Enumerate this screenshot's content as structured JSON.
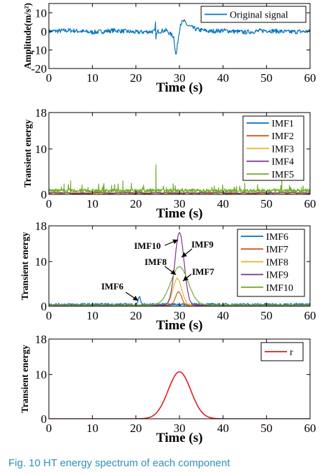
{
  "caption": "Fig. 10   HT energy spectrum of each component",
  "colors": {
    "blue": "#0072BD",
    "orange": "#D95319",
    "yellow": "#EDB120",
    "purple": "#7E2F8E",
    "green": "#77AC30",
    "red": "#E31A1C",
    "caption": "#2f8fb8"
  },
  "chart_data": [
    {
      "type": "line",
      "xlabel": "Time (s)",
      "ylabel": "Amplitude(m/s²)",
      "xlim": [
        0,
        60
      ],
      "ylim": [
        -20,
        15
      ],
      "xticks": [
        0,
        10,
        20,
        30,
        40,
        50,
        60
      ],
      "yticks": [
        -20,
        -10,
        0,
        10
      ],
      "legend_position": "top-right",
      "series": [
        {
          "name": "Original signal",
          "color": "#0072BD",
          "x": [
            0,
            5,
            10,
            15,
            20,
            24.4,
            24.5,
            24.6,
            25,
            27,
            28.7,
            29.2,
            29.6,
            30.2,
            31,
            32,
            34,
            37,
            40,
            45,
            50,
            55,
            60
          ],
          "y": [
            0,
            0.5,
            -0.5,
            0.5,
            -0.5,
            0,
            5,
            -3,
            0,
            0.5,
            -3,
            -13.5,
            -6,
            4,
            5.5,
            3,
            1,
            0,
            0.5,
            -0.5,
            0.5,
            -0.3,
            0
          ]
        }
      ]
    },
    {
      "type": "line",
      "xlabel": "Time (s)",
      "ylabel": "Transient energy",
      "xlim": [
        0,
        60
      ],
      "ylim": [
        0,
        18
      ],
      "xticks": [
        0,
        10,
        20,
        30,
        40,
        50,
        60
      ],
      "yticks": [
        0,
        10,
        18
      ],
      "legend_position": "top-right",
      "series": [
        {
          "name": "IMF1",
          "color": "#0072BD",
          "x": [
            0,
            60
          ],
          "y": [
            0.3,
            0.3
          ]
        },
        {
          "name": "IMF2",
          "color": "#D95319",
          "x": [
            0,
            60
          ],
          "y": [
            0.3,
            0.3
          ]
        },
        {
          "name": "IMF3",
          "color": "#EDB120",
          "x": [
            0,
            60
          ],
          "y": [
            0.3,
            0.3
          ]
        },
        {
          "name": "IMF4",
          "color": "#7E2F8E",
          "x": [
            0,
            60
          ],
          "y": [
            0.3,
            0.3
          ]
        },
        {
          "name": "IMF5",
          "color": "#77AC30",
          "x": [
            0,
            3.5,
            5,
            9,
            12.5,
            17,
            20,
            24.6,
            27,
            33,
            39,
            45,
            49,
            53.5,
            55.7,
            58,
            60
          ],
          "y": [
            0.5,
            2.3,
            3.0,
            1.5,
            2.0,
            3.0,
            1.0,
            6.5,
            1.5,
            1.2,
            1.5,
            2.5,
            1.3,
            3.5,
            1.2,
            1.5,
            0.5
          ]
        }
      ]
    },
    {
      "type": "line",
      "xlabel": "Time (s)",
      "ylabel": "Transient energy",
      "xlim": [
        0,
        60
      ],
      "ylim": [
        0,
        18
      ],
      "xticks": [
        0,
        10,
        20,
        30,
        40,
        50,
        60
      ],
      "yticks": [
        0,
        10,
        18
      ],
      "legend_position": "top-right",
      "annotations": [
        {
          "text": "IMF10",
          "x": 27.1,
          "y": 15.6
        },
        {
          "text": "IMF9",
          "x": 30.2,
          "y": 16
        },
        {
          "text": "IMF8",
          "x": 28.6,
          "y": 8.8
        },
        {
          "text": "IMF7",
          "x": 30.2,
          "y": 7.6
        },
        {
          "text": "IMF6",
          "x": 20.5,
          "y": 1.3
        }
      ],
      "series": [
        {
          "name": "IMF6",
          "color": "#0072BD",
          "peak_x": 20.8,
          "peak_y": 1.6,
          "width": 0.3
        },
        {
          "name": "IMF7",
          "color": "#D95319",
          "peak_x": 29.8,
          "peak_y": 3.0,
          "width": 0.7
        },
        {
          "name": "IMF8",
          "color": "#EDB120",
          "peak_x": 29.5,
          "peak_y": 6.0,
          "width": 1.0
        },
        {
          "name": "IMF9",
          "color": "#7E2F8E",
          "peak_x": 30.0,
          "peak_y": 16.3,
          "width": 1.05
        },
        {
          "name": "IMF10",
          "color": "#77AC30",
          "peak_x": 30.0,
          "peak_y": 8.6,
          "width": 2.0
        }
      ]
    },
    {
      "type": "line",
      "xlabel": "Time (s)",
      "ylabel": "Transient energy",
      "xlim": [
        0,
        60
      ],
      "ylim": [
        0,
        18
      ],
      "xticks": [
        0,
        10,
        20,
        30,
        40,
        50,
        60
      ],
      "yticks": [
        0,
        10,
        18
      ],
      "legend_position": "top-right",
      "series": [
        {
          "name": "r",
          "color": "#E31A1C",
          "peak_x": 30.0,
          "peak_y": 10.6,
          "width": 2.6
        }
      ]
    }
  ]
}
